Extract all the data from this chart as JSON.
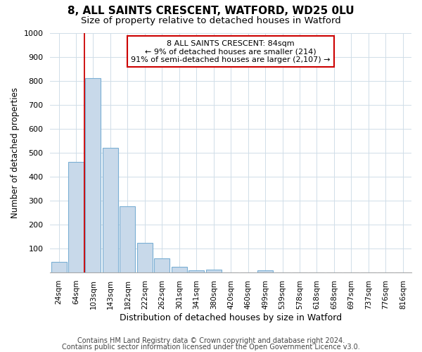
{
  "title1": "8, ALL SAINTS CRESCENT, WATFORD, WD25 0LU",
  "title2": "Size of property relative to detached houses in Watford",
  "xlabel": "Distribution of detached houses by size in Watford",
  "ylabel": "Number of detached properties",
  "categories": [
    "24sqm",
    "64sqm",
    "103sqm",
    "143sqm",
    "182sqm",
    "222sqm",
    "262sqm",
    "301sqm",
    "341sqm",
    "380sqm",
    "420sqm",
    "460sqm",
    "499sqm",
    "539sqm",
    "578sqm",
    "618sqm",
    "658sqm",
    "697sqm",
    "737sqm",
    "776sqm",
    "816sqm"
  ],
  "values": [
    45,
    460,
    810,
    520,
    275,
    125,
    58,
    25,
    10,
    13,
    0,
    0,
    8,
    0,
    0,
    0,
    0,
    0,
    0,
    0,
    0
  ],
  "bar_color": "#c8d9ea",
  "bar_edge_color": "#7aafd4",
  "vline_color": "#cc0000",
  "annotation_text": "8 ALL SAINTS CRESCENT: 84sqm\n← 9% of detached houses are smaller (214)\n91% of semi-detached houses are larger (2,107) →",
  "annotation_box_color": "#ffffff",
  "annotation_box_edge": "#cc0000",
  "ylim": [
    0,
    1000
  ],
  "yticks": [
    0,
    100,
    200,
    300,
    400,
    500,
    600,
    700,
    800,
    900,
    1000
  ],
  "footer1": "Contains HM Land Registry data © Crown copyright and database right 2024.",
  "footer2": "Contains public sector information licensed under the Open Government Licence v3.0.",
  "background_color": "#ffffff",
  "plot_bg_color": "#ffffff",
  "title1_fontsize": 11,
  "title2_fontsize": 9.5,
  "tick_fontsize": 8,
  "xlabel_fontsize": 9,
  "ylabel_fontsize": 8.5,
  "footer_fontsize": 7
}
